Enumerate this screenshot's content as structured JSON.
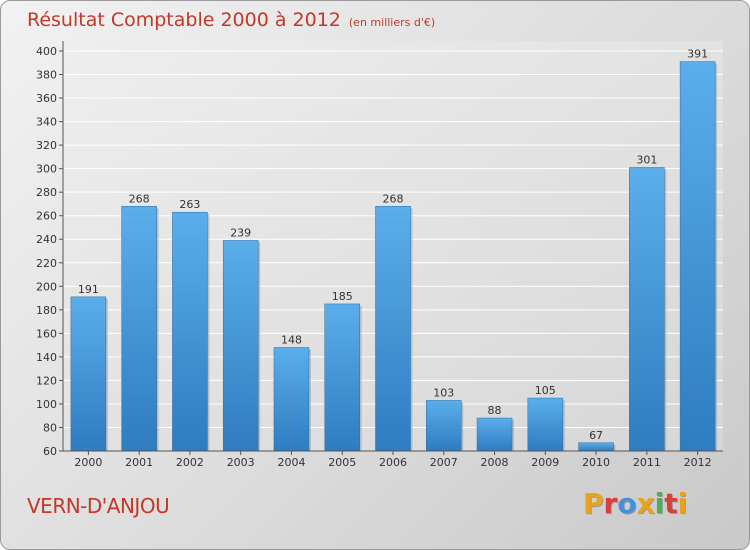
{
  "title": "Résultat Comptable 2000 à 2012",
  "subtitle": "(en milliers d'€)",
  "place": "VERN-D'ANJOU",
  "logo": {
    "text": "Proxiti",
    "colors": [
      "#e8a31c",
      "#d9403a",
      "#4a90d9",
      "#e8a31c",
      "#4caf50",
      "#d9403a",
      "#e8a31c"
    ]
  },
  "chart_data": {
    "type": "bar",
    "categories": [
      "2000",
      "2001",
      "2002",
      "2003",
      "2004",
      "2005",
      "2006",
      "2007",
      "2008",
      "2009",
      "2010",
      "2011",
      "2012"
    ],
    "values": [
      191,
      268,
      263,
      239,
      148,
      185,
      268,
      103,
      88,
      105,
      67,
      301,
      391
    ],
    "ylim": [
      60,
      400
    ],
    "yticks": [
      60,
      80,
      100,
      120,
      140,
      160,
      180,
      200,
      220,
      240,
      260,
      280,
      300,
      320,
      340,
      360,
      380,
      400
    ],
    "grid": true,
    "bar_color": "#4a9fe0",
    "xlabel": "",
    "ylabel": ""
  }
}
